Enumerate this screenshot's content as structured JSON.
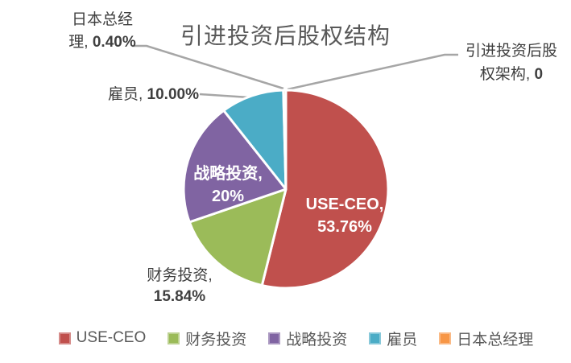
{
  "page": {
    "background": "#FFFFFF"
  },
  "title": {
    "text": "引进投资后股权结构",
    "color": "#595959"
  },
  "chart_data": {
    "type": "pie",
    "title": "引进投资后股权结构",
    "categories": [
      "引进投资后股权架构",
      "USE-CEO",
      "财务投资",
      "战略投资",
      "雇员",
      "日本总经理"
    ],
    "values": [
      0,
      53.76,
      15.84,
      20,
      10,
      0.4
    ],
    "unit": "%",
    "colors": [
      null,
      "#C0504D",
      "#9BBB59",
      "#8064A2",
      "#4BACC6",
      "#F79646"
    ],
    "start_angle_deg": 0,
    "direction": "clockwise",
    "legend_position": "bottom",
    "data_labels": [
      "引进投资后股权架构, 0",
      "USE-CEO, 53.76%",
      "财务投资, 15.84%",
      "战略投资, 20%",
      "雇员, 10.00%",
      "日本总经理, 0.40%"
    ]
  },
  "callouts": {
    "japan_gm": {
      "line1": "日本总经",
      "line2_text": "理, ",
      "line2_value": "0.40%"
    },
    "structure_zero": {
      "line1": "引进投资后股",
      "line2_text": "权架构, ",
      "line2_value": "0"
    },
    "employee": {
      "text": "雇员, ",
      "value": "10.00%"
    },
    "finance": {
      "line1": "财务投资,",
      "line2_value": "15.84%"
    }
  },
  "pie_labels": {
    "use_ceo": {
      "line1": "USE-CEO,",
      "line2": "53.76%"
    },
    "strategic": {
      "line1": "战略投资,",
      "line2": "20%"
    }
  },
  "legend": {
    "items": [
      {
        "label": "USE-CEO",
        "color": "#C0504D"
      },
      {
        "label": "财务投资",
        "color": "#9BBB59"
      },
      {
        "label": "战略投资",
        "color": "#8064A2"
      },
      {
        "label": "雇员",
        "color": "#4BACC6"
      },
      {
        "label": "日本总经理",
        "color": "#F79646"
      }
    ]
  },
  "style": {
    "leader_line_color": "#A6A6A6",
    "label_color": "#3F3F3F",
    "slice_border_color": "#FFFFFF"
  }
}
